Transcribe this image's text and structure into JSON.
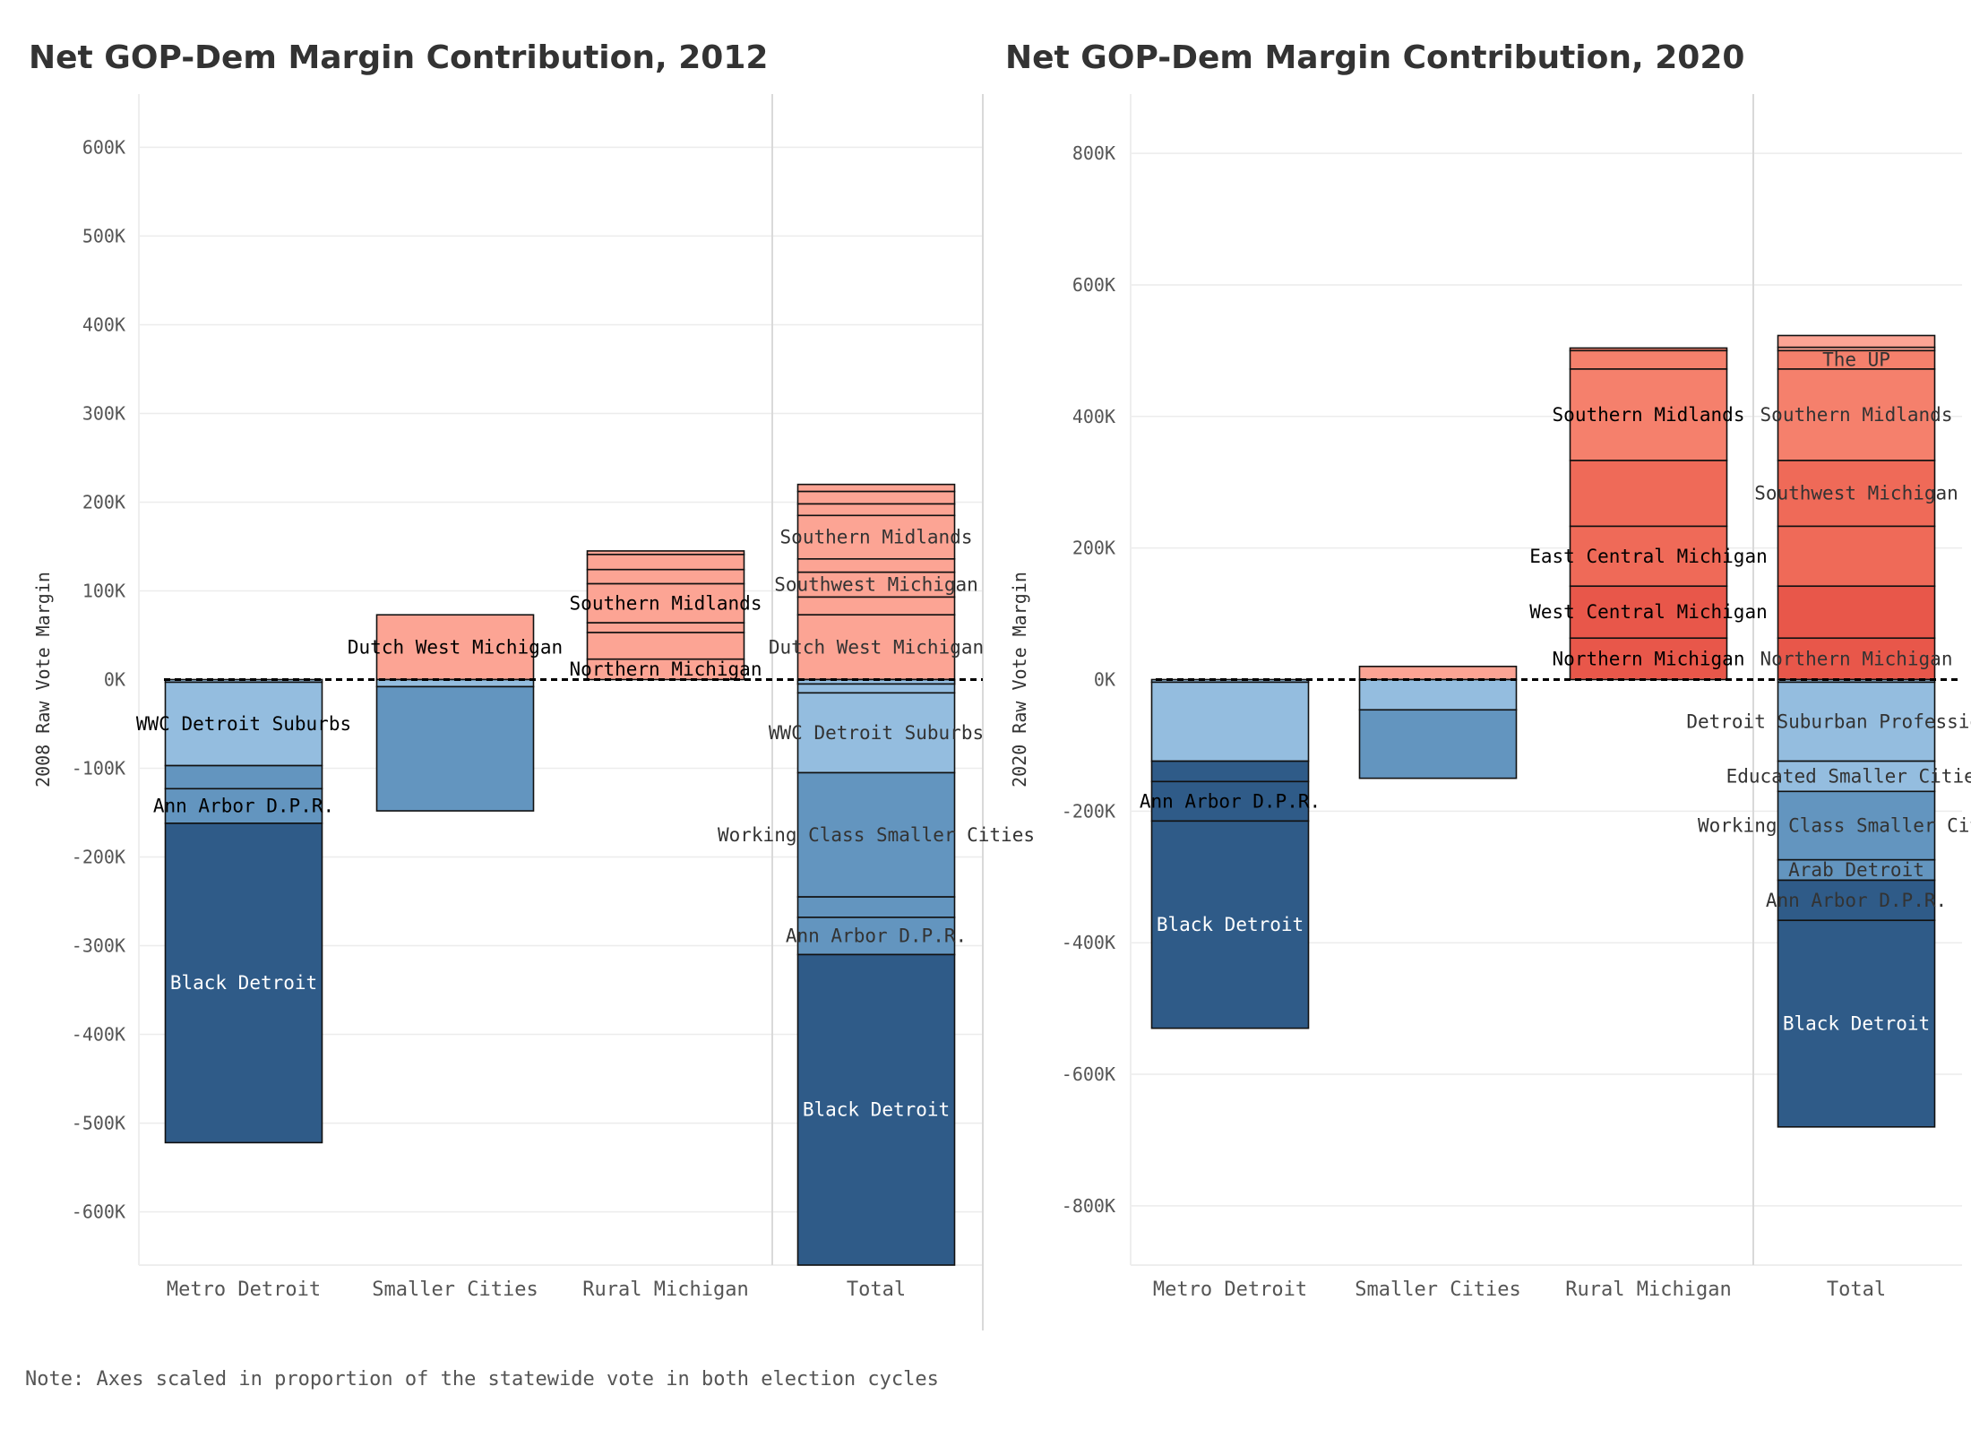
{
  "note": "Note: Axes scaled in proportion of the statewide vote in both election cycles",
  "colors": {
    "dark_blue": "#2f5b88",
    "mid_blue": "#6395bf",
    "light_blue": "#94bddf",
    "red_light": "#fca494",
    "red_mid": "#f5806c",
    "red_strong": "#ef6a58",
    "red_deep": "#e8574a"
  },
  "chart_data": [
    {
      "type": "bar",
      "title": "Net GOP-Dem Margin Contribution, 2012",
      "ylabel": "2008 Raw Vote Margin",
      "xlabel": "",
      "ylim": [
        -660000,
        660000
      ],
      "yticks": [
        600000,
        500000,
        400000,
        300000,
        200000,
        100000,
        0,
        -100000,
        -200000,
        -300000,
        -400000,
        -500000,
        -600000
      ],
      "ytick_labels": [
        "600K",
        "500K",
        "400K",
        "300K",
        "200K",
        "100K",
        "0K",
        "-100K",
        "-200K",
        "-300K",
        "-400K",
        "-500K",
        "-600K"
      ],
      "categories": [
        "Metro Detroit",
        "Smaller Cities",
        "Rural Michigan",
        "Total"
      ],
      "stacked": true,
      "zero_line": "dashed",
      "grid": true,
      "bars": [
        {
          "category": "Metro Detroit",
          "segments": [
            {
              "from": 0,
              "to": -3000,
              "color": "light_blue"
            },
            {
              "from": -3000,
              "to": -97000,
              "color": "light_blue",
              "label": "WWC Detroit Suburbs",
              "label_color": "#000000"
            },
            {
              "from": -97000,
              "to": -123000,
              "color": "mid_blue"
            },
            {
              "from": -123000,
              "to": -162000,
              "color": "mid_blue",
              "label": "Ann Arbor D.P.R.",
              "label_color": "#000000"
            },
            {
              "from": -162000,
              "to": -522000,
              "color": "dark_blue",
              "label": "Black Detroit",
              "label_color": "#ffffff"
            }
          ]
        },
        {
          "category": "Smaller Cities",
          "segments": [
            {
              "from": 73000,
              "to": 0,
              "color": "red_light",
              "label": "Dutch West Michigan",
              "label_color": "#000000"
            },
            {
              "from": 0,
              "to": -8000,
              "color": "light_blue"
            },
            {
              "from": -8000,
              "to": -148000,
              "color": "mid_blue"
            }
          ]
        },
        {
          "category": "Rural Michigan",
          "segments": [
            {
              "from": 145000,
              "to": 141000,
              "color": "red_light"
            },
            {
              "from": 141000,
              "to": 124000,
              "color": "red_light"
            },
            {
              "from": 124000,
              "to": 108000,
              "color": "red_light"
            },
            {
              "from": 108000,
              "to": 64000,
              "color": "red_light",
              "label": "Southern Midlands",
              "label_color": "#000000"
            },
            {
              "from": 64000,
              "to": 53000,
              "color": "red_light"
            },
            {
              "from": 53000,
              "to": 23000,
              "color": "red_light"
            },
            {
              "from": 23000,
              "to": 0,
              "color": "red_light",
              "label": "Northern Michigan",
              "label_color": "#000000"
            }
          ]
        },
        {
          "category": "Total",
          "segments": [
            {
              "from": 220000,
              "to": 212000,
              "color": "red_light"
            },
            {
              "from": 212000,
              "to": 198000,
              "color": "red_light"
            },
            {
              "from": 198000,
              "to": 185000,
              "color": "red_light"
            },
            {
              "from": 185000,
              "to": 136000,
              "color": "red_light",
              "label": "Southern Midlands",
              "label_color": "#333333"
            },
            {
              "from": 136000,
              "to": 121000,
              "color": "red_light"
            },
            {
              "from": 121000,
              "to": 93000,
              "color": "red_light",
              "label": "Southwest Michigan",
              "label_color": "#333333"
            },
            {
              "from": 93000,
              "to": 73000,
              "color": "red_light"
            },
            {
              "from": 73000,
              "to": 0,
              "color": "red_light",
              "label": "Dutch West Michigan",
              "label_color": "#333333"
            },
            {
              "from": 0,
              "to": -5000,
              "color": "light_blue"
            },
            {
              "from": 0,
              "to": -5000,
              "color": "light_blue"
            },
            {
              "from": -5000,
              "to": -15000,
              "color": "light_blue"
            },
            {
              "from": -15000,
              "to": -105000,
              "color": "light_blue",
              "label": "WWC Detroit Suburbs",
              "label_color": "#333333"
            },
            {
              "from": -105000,
              "to": -245000,
              "color": "mid_blue",
              "label": "Working Class Smaller Cities",
              "label_color": "#333333"
            },
            {
              "from": -245000,
              "to": -268000,
              "color": "mid_blue"
            },
            {
              "from": -268000,
              "to": -310000,
              "color": "mid_blue",
              "label": "Ann Arbor D.P.R.",
              "label_color": "#333333"
            },
            {
              "from": -310000,
              "to": -660000,
              "color": "dark_blue",
              "label": "Black Detroit",
              "label_color": "#ffffff"
            }
          ]
        }
      ]
    },
    {
      "type": "bar",
      "title": "Net GOP-Dem Margin Contribution, 2020",
      "ylabel": "2020 Raw Vote Margin",
      "xlabel": "",
      "ylim": [
        -890000,
        890000
      ],
      "yticks": [
        800000,
        600000,
        400000,
        200000,
        0,
        -200000,
        -400000,
        -600000,
        -800000
      ],
      "ytick_labels": [
        "800K",
        "600K",
        "400K",
        "200K",
        "0K",
        "-200K",
        "-400K",
        "-600K",
        "-800K"
      ],
      "categories": [
        "Metro Detroit",
        "Smaller Cities",
        "Rural Michigan",
        "Total"
      ],
      "stacked": true,
      "zero_line": "dashed",
      "grid": true,
      "bars": [
        {
          "category": "Metro Detroit",
          "segments": [
            {
              "from": 0,
              "to": -4000,
              "color": "light_blue"
            },
            {
              "from": -4000,
              "to": -124000,
              "color": "light_blue"
            },
            {
              "from": -124000,
              "to": -155000,
              "color": "dark_blue"
            },
            {
              "from": -155000,
              "to": -215000,
              "color": "dark_blue",
              "label": "Ann Arbor D.P.R.",
              "label_color": "#000000"
            },
            {
              "from": -215000,
              "to": -530000,
              "color": "dark_blue",
              "label": "Black Detroit",
              "label_color": "#ffffff"
            }
          ]
        },
        {
          "category": "Smaller Cities",
          "segments": [
            {
              "from": 20000,
              "to": 0,
              "color": "red_light"
            },
            {
              "from": 0,
              "to": -46000,
              "color": "light_blue"
            },
            {
              "from": -46000,
              "to": -150000,
              "color": "mid_blue"
            }
          ]
        },
        {
          "category": "Rural Michigan",
          "segments": [
            {
              "from": 504000,
              "to": 500000,
              "color": "red_mid"
            },
            {
              "from": 500000,
              "to": 472000,
              "color": "red_mid"
            },
            {
              "from": 472000,
              "to": 333000,
              "color": "red_mid",
              "label": "Southern Midlands",
              "label_color": "#000000"
            },
            {
              "from": 333000,
              "to": 233000,
              "color": "red_strong"
            },
            {
              "from": 233000,
              "to": 142000,
              "color": "red_strong",
              "label": "East Central Michigan",
              "label_color": "#000000"
            },
            {
              "from": 142000,
              "to": 63000,
              "color": "red_deep",
              "label": "West Central Michigan",
              "label_color": "#000000"
            },
            {
              "from": 63000,
              "to": 0,
              "color": "red_deep",
              "label": "Northern Michigan",
              "label_color": "#000000"
            }
          ]
        },
        {
          "category": "Total",
          "segments": [
            {
              "from": 523000,
              "to": 505000,
              "color": "red_light"
            },
            {
              "from": 505000,
              "to": 500000,
              "color": "red_light"
            },
            {
              "from": 500000,
              "to": 472000,
              "color": "red_mid",
              "label": "The UP",
              "label_color": "#333333"
            },
            {
              "from": 472000,
              "to": 333000,
              "color": "red_mid",
              "label": "Southern Midlands",
              "label_color": "#333333"
            },
            {
              "from": 333000,
              "to": 233000,
              "color": "red_strong",
              "label": "Southwest Michigan",
              "label_color": "#333333"
            },
            {
              "from": 233000,
              "to": 142000,
              "color": "red_strong"
            },
            {
              "from": 142000,
              "to": 63000,
              "color": "red_deep"
            },
            {
              "from": 63000,
              "to": 0,
              "color": "red_deep",
              "label": "Northern Michigan",
              "label_color": "#333333"
            },
            {
              "from": 0,
              "to": -4000,
              "color": "light_blue"
            },
            {
              "from": -4000,
              "to": -124000,
              "color": "light_blue",
              "label": "Detroit Suburban Professionals",
              "label_color": "#333333"
            },
            {
              "from": -124000,
              "to": -170000,
              "color": "light_blue",
              "label": "Educated Smaller Cities",
              "label_color": "#333333"
            },
            {
              "from": -170000,
              "to": -274000,
              "color": "mid_blue",
              "label": "Working Class Smaller Cities",
              "label_color": "#333333"
            },
            {
              "from": -274000,
              "to": -305000,
              "color": "mid_blue",
              "label": "Arab Detroit",
              "label_color": "#333333"
            },
            {
              "from": -305000,
              "to": -366000,
              "color": "dark_blue",
              "label": "Ann Arbor D.P.R.",
              "label_color": "#333333"
            },
            {
              "from": -366000,
              "to": -680000,
              "color": "dark_blue",
              "label": "Black Detroit",
              "label_color": "#ffffff"
            }
          ]
        }
      ]
    }
  ]
}
